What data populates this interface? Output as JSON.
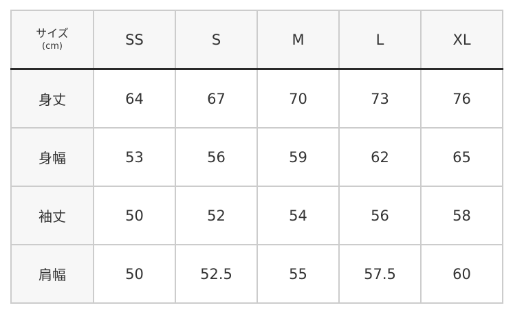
{
  "table": {
    "corner_label": "サイズ",
    "corner_unit": "(cm)",
    "columns": [
      "SS",
      "S",
      "M",
      "L",
      "XL"
    ],
    "rows": [
      {
        "label": "身丈",
        "values": [
          "64",
          "67",
          "70",
          "73",
          "76"
        ]
      },
      {
        "label": "身幅",
        "values": [
          "53",
          "56",
          "59",
          "62",
          "65"
        ]
      },
      {
        "label": "袖丈",
        "values": [
          "50",
          "52",
          "54",
          "56",
          "58"
        ]
      },
      {
        "label": "肩幅",
        "values": [
          "50",
          "52.5",
          "55",
          "57.5",
          "60"
        ]
      }
    ]
  },
  "colors": {
    "header_bg": "#f7f7f7",
    "border": "#cccccc",
    "header_divider": "#2a2a2a"
  }
}
